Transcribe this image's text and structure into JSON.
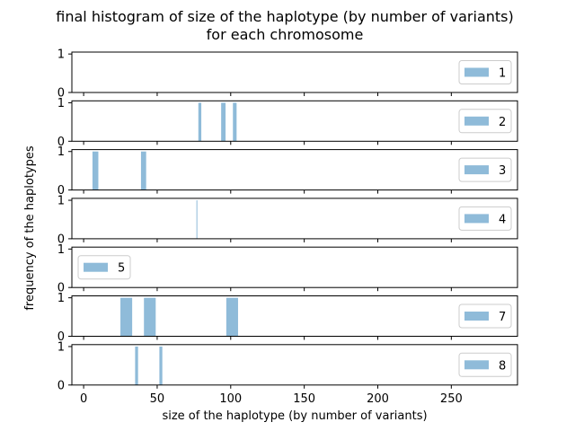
{
  "chart_data": {
    "type": "bar",
    "title": [
      "final histogram of size of the haplotype (by number of variants)",
      "for each chromosome"
    ],
    "xlabel": "size of the haplotype (by number of variants)",
    "ylabel": "frequency of the haplotypes",
    "xlim": [
      -8,
      295
    ],
    "xticks": [
      0,
      50,
      100,
      150,
      200,
      250
    ],
    "ylim": [
      0,
      1.05
    ],
    "yticks": [
      0,
      1
    ],
    "bar_color": "#1f77b4",
    "bar_alpha": 0.5,
    "panels": [
      {
        "name": "1",
        "legend_loc": "right",
        "bars": []
      },
      {
        "name": "2",
        "legend_loc": "right",
        "bars": [
          {
            "x0": 78,
            "x1": 80,
            "value": 1
          },
          {
            "x0": 93.5,
            "x1": 96.5,
            "value": 1
          },
          {
            "x0": 101.5,
            "x1": 104,
            "value": 1
          }
        ]
      },
      {
        "name": "3",
        "legend_loc": "right",
        "bars": [
          {
            "x0": 6,
            "x1": 10,
            "value": 1
          },
          {
            "x0": 39,
            "x1": 42.5,
            "value": 1
          }
        ]
      },
      {
        "name": "4",
        "legend_loc": "right",
        "bars": [
          {
            "x0": 76.7,
            "x1": 77.3,
            "value": 1
          }
        ]
      },
      {
        "name": "5",
        "legend_loc": "left",
        "bars": []
      },
      {
        "name": "7",
        "legend_loc": "right",
        "bars": [
          {
            "x0": 25,
            "x1": 33,
            "value": 1
          },
          {
            "x0": 41,
            "x1": 49,
            "value": 1
          },
          {
            "x0": 97,
            "x1": 105,
            "value": 1
          }
        ]
      },
      {
        "name": "8",
        "legend_loc": "right",
        "bars": [
          {
            "x0": 35,
            "x1": 37,
            "value": 1
          },
          {
            "x0": 51.5,
            "x1": 53.5,
            "value": 1
          }
        ]
      }
    ]
  }
}
